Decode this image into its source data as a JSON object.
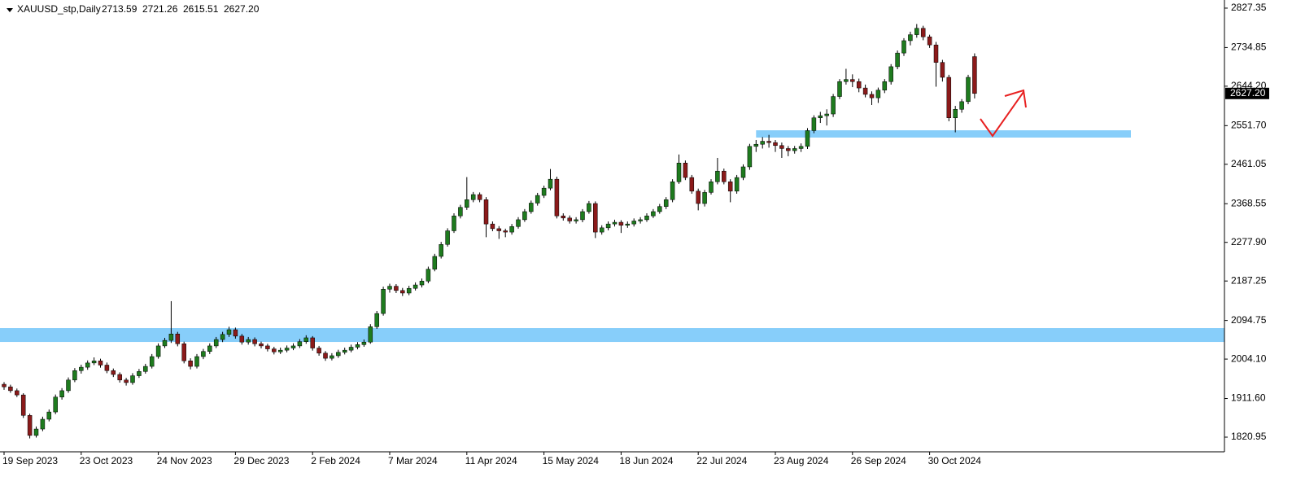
{
  "chart_data": {
    "type": "candlestick",
    "title": "XAUUSD_stp,Daily",
    "last_labels": [
      "2713.59",
      "2721.26",
      "2615.51",
      "2627.20"
    ],
    "current_price": {
      "value": 2627.2,
      "label": "2627.20"
    },
    "up_color": "#1e7b1e",
    "down_color": "#8b1a1a",
    "wick_color": "#000000",
    "ylim": [
      1786.6,
      2846.4
    ],
    "yticks": [
      2827.35,
      2734.85,
      {
        "value": 2644.2,
        "label": "2644.20"
      },
      {
        "value": 2551.7,
        "label": "2551.70"
      },
      2461.05,
      2368.55,
      {
        "value": 2277.9,
        "label": "2277.90"
      },
      2187.25,
      2094.75,
      {
        "value": 2004.1,
        "label": "2004.10"
      },
      {
        "value": 1911.6,
        "label": "1911.60"
      },
      1820.95
    ],
    "x_labels": [
      {
        "at": 0,
        "label": "19 Sep 2023"
      },
      {
        "at": 12,
        "label": "23 Oct 2023"
      },
      {
        "at": 24,
        "label": "24 Nov 2023"
      },
      {
        "at": 36,
        "label": "29 Dec 2023"
      },
      {
        "at": 48,
        "label": "2 Feb 2024"
      },
      {
        "at": 60,
        "label": "7 Mar 2024"
      },
      {
        "at": 72,
        "label": "11 Apr 2024"
      },
      {
        "at": 84,
        "label": "15 May 2024"
      },
      {
        "at": 96,
        "label": "18 Jun 2024"
      },
      {
        "at": 108,
        "label": "22 Jul 2024"
      },
      {
        "at": 120,
        "label": "23 Aug 2024"
      },
      {
        "at": 132,
        "label": "26 Sep 2024"
      },
      {
        "at": 144,
        "label": "30 Oct 2024"
      }
    ],
    "zones": [
      {
        "from": 2044.3,
        "to": 2076.8,
        "start": 0,
        "color": "#87cefa"
      },
      {
        "from": 2523.7,
        "to": 2540.8,
        "start": 117,
        "color": "#87cefa"
      }
    ],
    "candles": [
      [
        1945,
        1950,
        1932,
        1939
      ],
      [
        1939,
        1944,
        1925,
        1930
      ],
      [
        1930,
        1935,
        1915,
        1920
      ],
      [
        1920,
        1924,
        1866,
        1872
      ],
      [
        1872,
        1876,
        1818,
        1825
      ],
      [
        1825,
        1846,
        1820,
        1840
      ],
      [
        1840,
        1869,
        1835,
        1863
      ],
      [
        1863,
        1886,
        1858,
        1880
      ],
      [
        1880,
        1921,
        1875,
        1915
      ],
      [
        1915,
        1936,
        1909,
        1930
      ],
      [
        1930,
        1961,
        1925,
        1955
      ],
      [
        1955,
        1983,
        1950,
        1977
      ],
      [
        1977,
        1991,
        1970,
        1985
      ],
      [
        1985,
        2001,
        1979,
        1995
      ],
      [
        1995,
        2008,
        1990,
        2000
      ],
      [
        2000,
        2005,
        1984,
        1990
      ],
      [
        1990,
        1996,
        1971,
        1977
      ],
      [
        1977,
        1982,
        1962,
        1968
      ],
      [
        1968,
        1973,
        1949,
        1955
      ],
      [
        1955,
        1960,
        1942,
        1949
      ],
      [
        1949,
        1971,
        1944,
        1965
      ],
      [
        1965,
        1981,
        1960,
        1975
      ],
      [
        1975,
        1993,
        1970,
        1987
      ],
      [
        1987,
        2016,
        1982,
        2010
      ],
      [
        2010,
        2041,
        2005,
        2035
      ],
      [
        2035,
        2054,
        2030,
        2048
      ],
      [
        2048,
        2140,
        2042,
        2063
      ],
      [
        2063,
        2068,
        2034,
        2040
      ],
      [
        2040,
        2045,
        1994,
        2000
      ],
      [
        2000,
        2006,
        1980,
        1987
      ],
      [
        1987,
        2016,
        1982,
        2010
      ],
      [
        2010,
        2028,
        2004,
        2022
      ],
      [
        2022,
        2041,
        2016,
        2035
      ],
      [
        2035,
        2056,
        2030,
        2050
      ],
      [
        2050,
        2068,
        2044,
        2062
      ],
      [
        2062,
        2080,
        2056,
        2073
      ],
      [
        2073,
        2078,
        2052,
        2058
      ],
      [
        2058,
        2063,
        2038,
        2044
      ],
      [
        2044,
        2056,
        2038,
        2050
      ],
      [
        2050,
        2055,
        2034,
        2040
      ],
      [
        2040,
        2045,
        2029,
        2035
      ],
      [
        2035,
        2040,
        2022,
        2028
      ],
      [
        2028,
        2033,
        2015,
        2021
      ],
      [
        2021,
        2031,
        2016,
        2025
      ],
      [
        2025,
        2036,
        2020,
        2030
      ],
      [
        2030,
        2041,
        2025,
        2035
      ],
      [
        2035,
        2051,
        2030,
        2045
      ],
      [
        2045,
        2060,
        2040,
        2054
      ],
      [
        2054,
        2058,
        2024,
        2030
      ],
      [
        2030,
        2035,
        2012,
        2018
      ],
      [
        2018,
        2023,
        2000,
        2006
      ],
      [
        2006,
        2018,
        2001,
        2012
      ],
      [
        2012,
        2026,
        2007,
        2020
      ],
      [
        2020,
        2031,
        2015,
        2025
      ],
      [
        2025,
        2038,
        2020,
        2032
      ],
      [
        2032,
        2044,
        2027,
        2038
      ],
      [
        2038,
        2050,
        2033,
        2044
      ],
      [
        2044,
        2086,
        2040,
        2080
      ],
      [
        2080,
        2117,
        2075,
        2111
      ],
      [
        2111,
        2174,
        2106,
        2168
      ],
      [
        2168,
        2181,
        2160,
        2175
      ],
      [
        2175,
        2180,
        2159,
        2165
      ],
      [
        2165,
        2171,
        2152,
        2159
      ],
      [
        2159,
        2176,
        2154,
        2170
      ],
      [
        2170,
        2184,
        2165,
        2178
      ],
      [
        2178,
        2193,
        2172,
        2187
      ],
      [
        2187,
        2221,
        2182,
        2215
      ],
      [
        2215,
        2251,
        2210,
        2245
      ],
      [
        2245,
        2279,
        2240,
        2273
      ],
      [
        2273,
        2311,
        2268,
        2305
      ],
      [
        2305,
        2346,
        2300,
        2340
      ],
      [
        2340,
        2366,
        2334,
        2360
      ],
      [
        2360,
        2431,
        2354,
        2378
      ],
      [
        2378,
        2396,
        2372,
        2390
      ],
      [
        2390,
        2395,
        2372,
        2378
      ],
      [
        2378,
        2384,
        2290,
        2321
      ],
      [
        2321,
        2327,
        2304,
        2310
      ],
      [
        2310,
        2316,
        2286,
        2305
      ],
      [
        2305,
        2310,
        2290,
        2302
      ],
      [
        2302,
        2321,
        2296,
        2315
      ],
      [
        2315,
        2337,
        2310,
        2331
      ],
      [
        2331,
        2356,
        2326,
        2350
      ],
      [
        2350,
        2376,
        2345,
        2370
      ],
      [
        2370,
        2394,
        2364,
        2388
      ],
      [
        2388,
        2411,
        2382,
        2405
      ],
      [
        2405,
        2450,
        2400,
        2426
      ],
      [
        2426,
        2432,
        2334,
        2340
      ],
      [
        2340,
        2346,
        2329,
        2335
      ],
      [
        2335,
        2341,
        2322,
        2328
      ],
      [
        2328,
        2337,
        2322,
        2331
      ],
      [
        2331,
        2356,
        2325,
        2350
      ],
      [
        2350,
        2375,
        2345,
        2369
      ],
      [
        2369,
        2374,
        2288,
        2302
      ],
      [
        2302,
        2318,
        2296,
        2312
      ],
      [
        2312,
        2327,
        2306,
        2321
      ],
      [
        2321,
        2331,
        2315,
        2325
      ],
      [
        2325,
        2330,
        2300,
        2318
      ],
      [
        2318,
        2327,
        2312,
        2321
      ],
      [
        2321,
        2334,
        2315,
        2328
      ],
      [
        2328,
        2337,
        2322,
        2331
      ],
      [
        2331,
        2346,
        2326,
        2340
      ],
      [
        2340,
        2356,
        2335,
        2350
      ],
      [
        2350,
        2368,
        2345,
        2362
      ],
      [
        2362,
        2384,
        2356,
        2378
      ],
      [
        2378,
        2426,
        2372,
        2420
      ],
      [
        2420,
        2484,
        2415,
        2464
      ],
      [
        2464,
        2470,
        2424,
        2430
      ],
      [
        2430,
        2436,
        2392,
        2398
      ],
      [
        2398,
        2404,
        2353,
        2369
      ],
      [
        2369,
        2401,
        2362,
        2395
      ],
      [
        2395,
        2426,
        2390,
        2420
      ],
      [
        2420,
        2476,
        2414,
        2445
      ],
      [
        2445,
        2451,
        2414,
        2420
      ],
      [
        2420,
        2426,
        2372,
        2398
      ],
      [
        2398,
        2436,
        2392,
        2430
      ],
      [
        2430,
        2461,
        2424,
        2455
      ],
      [
        2455,
        2509,
        2448,
        2503
      ],
      [
        2503,
        2518,
        2490,
        2508
      ],
      [
        2508,
        2525,
        2498,
        2515
      ],
      [
        2515,
        2530,
        2500,
        2512
      ],
      [
        2512,
        2518,
        2490,
        2505
      ],
      [
        2505,
        2512,
        2476,
        2498
      ],
      [
        2498,
        2504,
        2480,
        2493
      ],
      [
        2493,
        2504,
        2486,
        2498
      ],
      [
        2498,
        2510,
        2490,
        2503
      ],
      [
        2503,
        2546,
        2497,
        2540
      ],
      [
        2540,
        2576,
        2534,
        2570
      ],
      [
        2570,
        2584,
        2558,
        2575
      ],
      [
        2575,
        2590,
        2552,
        2579
      ],
      [
        2579,
        2626,
        2572,
        2620
      ],
      [
        2620,
        2661,
        2614,
        2655
      ],
      [
        2655,
        2685,
        2648,
        2660
      ],
      [
        2660,
        2672,
        2642,
        2655
      ],
      [
        2655,
        2662,
        2630,
        2640
      ],
      [
        2640,
        2648,
        2618,
        2625
      ],
      [
        2625,
        2632,
        2600,
        2617
      ],
      [
        2617,
        2641,
        2605,
        2635
      ],
      [
        2635,
        2661,
        2628,
        2655
      ],
      [
        2655,
        2696,
        2648,
        2690
      ],
      [
        2690,
        2728,
        2684,
        2722
      ],
      [
        2722,
        2757,
        2715,
        2751
      ],
      [
        2751,
        2772,
        2740,
        2765
      ],
      [
        2765,
        2790,
        2758,
        2780
      ],
      [
        2780,
        2786,
        2752,
        2760
      ],
      [
        2760,
        2765,
        2734,
        2741
      ],
      [
        2741,
        2748,
        2643,
        2700
      ],
      [
        2700,
        2706,
        2655,
        2665
      ],
      [
        2665,
        2671,
        2562,
        2570
      ],
      [
        2570,
        2598,
        2536,
        2590
      ],
      [
        2590,
        2614,
        2582,
        2608
      ],
      [
        2608,
        2671,
        2602,
        2665
      ],
      [
        2713.59,
        2721.26,
        2615.51,
        2627.2
      ]
    ]
  }
}
